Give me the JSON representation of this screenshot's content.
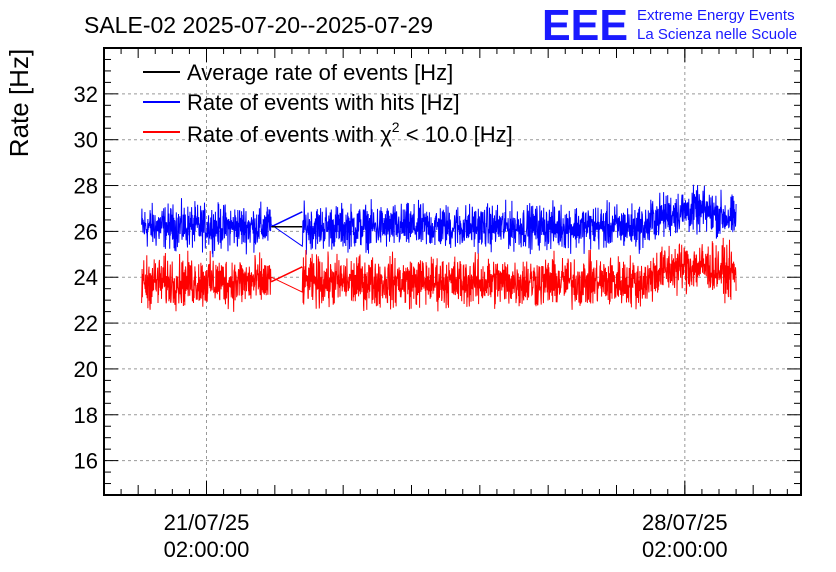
{
  "chart_data": {
    "type": "line",
    "title": "SALE-02 2025-07-20--2025-07-29",
    "xlabel": "",
    "ylabel": "Rate [Hz]",
    "ylim": [
      14.5,
      34
    ],
    "xlim_days": [
      -1.5,
      8.7
    ],
    "yticks": [
      16,
      18,
      20,
      22,
      24,
      26,
      28,
      30,
      32
    ],
    "xticks": [
      {
        "day": 0,
        "line1": "21/07/25",
        "line2": "02:00:00"
      },
      {
        "day": 7,
        "line1": "28/07/25",
        "line2": "02:00:00"
      }
    ],
    "grid": true,
    "legend_position": "top-left",
    "gap_days": [
      0.95,
      1.4
    ],
    "series": [
      {
        "name": "Average rate of events [Hz]",
        "color": "#000000",
        "start_day": -0.95,
        "end_day": 7.75,
        "mean": 26.2,
        "spread": 0.0
      },
      {
        "name": "Rate of events with hits [Hz]",
        "color": "#0000ff",
        "start_day": -0.95,
        "end_day": 7.75,
        "mean": 26.2,
        "spread": 1.4
      },
      {
        "name": "Rate of events with χ² < 10.0 [Hz]",
        "color": "#ff0000",
        "start_day": -0.95,
        "end_day": 7.75,
        "mean": 23.8,
        "spread": 1.6
      }
    ],
    "legend": {
      "avg": "Average rate of events [Hz]",
      "hits": "Rate of events with hits [Hz]",
      "chi_prefix": "Rate of events with ",
      "chi_symbol": "χ",
      "chi_sup": "2",
      "chi_suffix": " < 10.0 [Hz]"
    }
  },
  "logo": {
    "mark": "EEE",
    "line1": "Extreme Energy Events",
    "line2": "La Scienza nelle Scuole"
  },
  "colors": {
    "avg": "#000000",
    "hits": "#0000ff",
    "chi2": "#ff0000",
    "logo": "#1a1aff",
    "grid": "#999999"
  }
}
